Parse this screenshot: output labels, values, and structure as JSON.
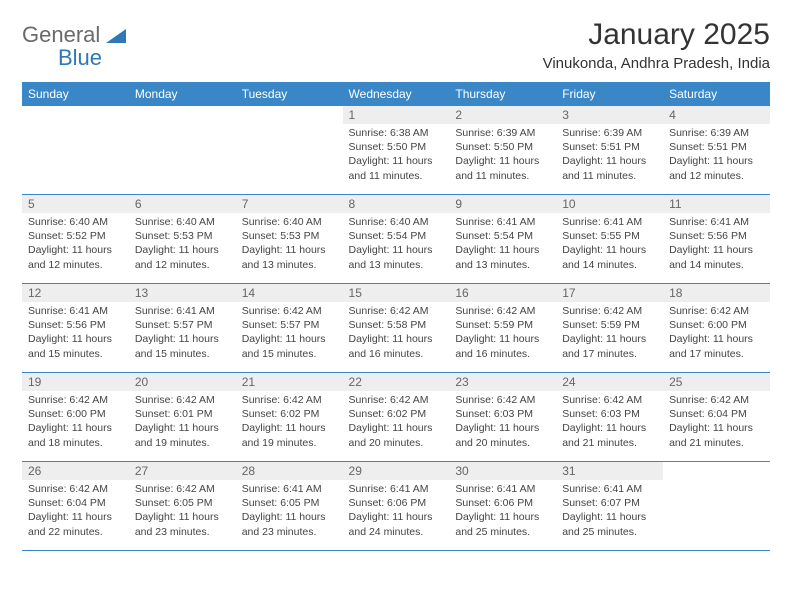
{
  "brand": {
    "part1": "General",
    "part2": "Blue"
  },
  "header": {
    "month_title": "January 2025",
    "location": "Vinukonda, Andhra Pradesh, India"
  },
  "calendar": {
    "day_headers": [
      "Sunday",
      "Monday",
      "Tuesday",
      "Wednesday",
      "Thursday",
      "Friday",
      "Saturday"
    ],
    "colors": {
      "header_bg": "#3a87c8",
      "header_text": "#ffffff",
      "daynum_bg": "#eeeeee",
      "rule": "#3a87c8",
      "body_bg": "#ffffff"
    },
    "weeks": [
      [
        {
          "blank": true
        },
        {
          "blank": true
        },
        {
          "blank": true
        },
        {
          "day": "1",
          "sunrise": "Sunrise: 6:38 AM",
          "sunset": "Sunset: 5:50 PM",
          "daylight1": "Daylight: 11 hours",
          "daylight2": "and 11 minutes."
        },
        {
          "day": "2",
          "sunrise": "Sunrise: 6:39 AM",
          "sunset": "Sunset: 5:50 PM",
          "daylight1": "Daylight: 11 hours",
          "daylight2": "and 11 minutes."
        },
        {
          "day": "3",
          "sunrise": "Sunrise: 6:39 AM",
          "sunset": "Sunset: 5:51 PM",
          "daylight1": "Daylight: 11 hours",
          "daylight2": "and 11 minutes."
        },
        {
          "day": "4",
          "sunrise": "Sunrise: 6:39 AM",
          "sunset": "Sunset: 5:51 PM",
          "daylight1": "Daylight: 11 hours",
          "daylight2": "and 12 minutes."
        }
      ],
      [
        {
          "day": "5",
          "sunrise": "Sunrise: 6:40 AM",
          "sunset": "Sunset: 5:52 PM",
          "daylight1": "Daylight: 11 hours",
          "daylight2": "and 12 minutes."
        },
        {
          "day": "6",
          "sunrise": "Sunrise: 6:40 AM",
          "sunset": "Sunset: 5:53 PM",
          "daylight1": "Daylight: 11 hours",
          "daylight2": "and 12 minutes."
        },
        {
          "day": "7",
          "sunrise": "Sunrise: 6:40 AM",
          "sunset": "Sunset: 5:53 PM",
          "daylight1": "Daylight: 11 hours",
          "daylight2": "and 13 minutes."
        },
        {
          "day": "8",
          "sunrise": "Sunrise: 6:40 AM",
          "sunset": "Sunset: 5:54 PM",
          "daylight1": "Daylight: 11 hours",
          "daylight2": "and 13 minutes."
        },
        {
          "day": "9",
          "sunrise": "Sunrise: 6:41 AM",
          "sunset": "Sunset: 5:54 PM",
          "daylight1": "Daylight: 11 hours",
          "daylight2": "and 13 minutes."
        },
        {
          "day": "10",
          "sunrise": "Sunrise: 6:41 AM",
          "sunset": "Sunset: 5:55 PM",
          "daylight1": "Daylight: 11 hours",
          "daylight2": "and 14 minutes."
        },
        {
          "day": "11",
          "sunrise": "Sunrise: 6:41 AM",
          "sunset": "Sunset: 5:56 PM",
          "daylight1": "Daylight: 11 hours",
          "daylight2": "and 14 minutes."
        }
      ],
      [
        {
          "day": "12",
          "sunrise": "Sunrise: 6:41 AM",
          "sunset": "Sunset: 5:56 PM",
          "daylight1": "Daylight: 11 hours",
          "daylight2": "and 15 minutes."
        },
        {
          "day": "13",
          "sunrise": "Sunrise: 6:41 AM",
          "sunset": "Sunset: 5:57 PM",
          "daylight1": "Daylight: 11 hours",
          "daylight2": "and 15 minutes."
        },
        {
          "day": "14",
          "sunrise": "Sunrise: 6:42 AM",
          "sunset": "Sunset: 5:57 PM",
          "daylight1": "Daylight: 11 hours",
          "daylight2": "and 15 minutes."
        },
        {
          "day": "15",
          "sunrise": "Sunrise: 6:42 AM",
          "sunset": "Sunset: 5:58 PM",
          "daylight1": "Daylight: 11 hours",
          "daylight2": "and 16 minutes."
        },
        {
          "day": "16",
          "sunrise": "Sunrise: 6:42 AM",
          "sunset": "Sunset: 5:59 PM",
          "daylight1": "Daylight: 11 hours",
          "daylight2": "and 16 minutes."
        },
        {
          "day": "17",
          "sunrise": "Sunrise: 6:42 AM",
          "sunset": "Sunset: 5:59 PM",
          "daylight1": "Daylight: 11 hours",
          "daylight2": "and 17 minutes."
        },
        {
          "day": "18",
          "sunrise": "Sunrise: 6:42 AM",
          "sunset": "Sunset: 6:00 PM",
          "daylight1": "Daylight: 11 hours",
          "daylight2": "and 17 minutes."
        }
      ],
      [
        {
          "day": "19",
          "sunrise": "Sunrise: 6:42 AM",
          "sunset": "Sunset: 6:00 PM",
          "daylight1": "Daylight: 11 hours",
          "daylight2": "and 18 minutes."
        },
        {
          "day": "20",
          "sunrise": "Sunrise: 6:42 AM",
          "sunset": "Sunset: 6:01 PM",
          "daylight1": "Daylight: 11 hours",
          "daylight2": "and 19 minutes."
        },
        {
          "day": "21",
          "sunrise": "Sunrise: 6:42 AM",
          "sunset": "Sunset: 6:02 PM",
          "daylight1": "Daylight: 11 hours",
          "daylight2": "and 19 minutes."
        },
        {
          "day": "22",
          "sunrise": "Sunrise: 6:42 AM",
          "sunset": "Sunset: 6:02 PM",
          "daylight1": "Daylight: 11 hours",
          "daylight2": "and 20 minutes."
        },
        {
          "day": "23",
          "sunrise": "Sunrise: 6:42 AM",
          "sunset": "Sunset: 6:03 PM",
          "daylight1": "Daylight: 11 hours",
          "daylight2": "and 20 minutes."
        },
        {
          "day": "24",
          "sunrise": "Sunrise: 6:42 AM",
          "sunset": "Sunset: 6:03 PM",
          "daylight1": "Daylight: 11 hours",
          "daylight2": "and 21 minutes."
        },
        {
          "day": "25",
          "sunrise": "Sunrise: 6:42 AM",
          "sunset": "Sunset: 6:04 PM",
          "daylight1": "Daylight: 11 hours",
          "daylight2": "and 21 minutes."
        }
      ],
      [
        {
          "day": "26",
          "sunrise": "Sunrise: 6:42 AM",
          "sunset": "Sunset: 6:04 PM",
          "daylight1": "Daylight: 11 hours",
          "daylight2": "and 22 minutes."
        },
        {
          "day": "27",
          "sunrise": "Sunrise: 6:42 AM",
          "sunset": "Sunset: 6:05 PM",
          "daylight1": "Daylight: 11 hours",
          "daylight2": "and 23 minutes."
        },
        {
          "day": "28",
          "sunrise": "Sunrise: 6:41 AM",
          "sunset": "Sunset: 6:05 PM",
          "daylight1": "Daylight: 11 hours",
          "daylight2": "and 23 minutes."
        },
        {
          "day": "29",
          "sunrise": "Sunrise: 6:41 AM",
          "sunset": "Sunset: 6:06 PM",
          "daylight1": "Daylight: 11 hours",
          "daylight2": "and 24 minutes."
        },
        {
          "day": "30",
          "sunrise": "Sunrise: 6:41 AM",
          "sunset": "Sunset: 6:06 PM",
          "daylight1": "Daylight: 11 hours",
          "daylight2": "and 25 minutes."
        },
        {
          "day": "31",
          "sunrise": "Sunrise: 6:41 AM",
          "sunset": "Sunset: 6:07 PM",
          "daylight1": "Daylight: 11 hours",
          "daylight2": "and 25 minutes."
        },
        {
          "blank": true
        }
      ]
    ]
  }
}
